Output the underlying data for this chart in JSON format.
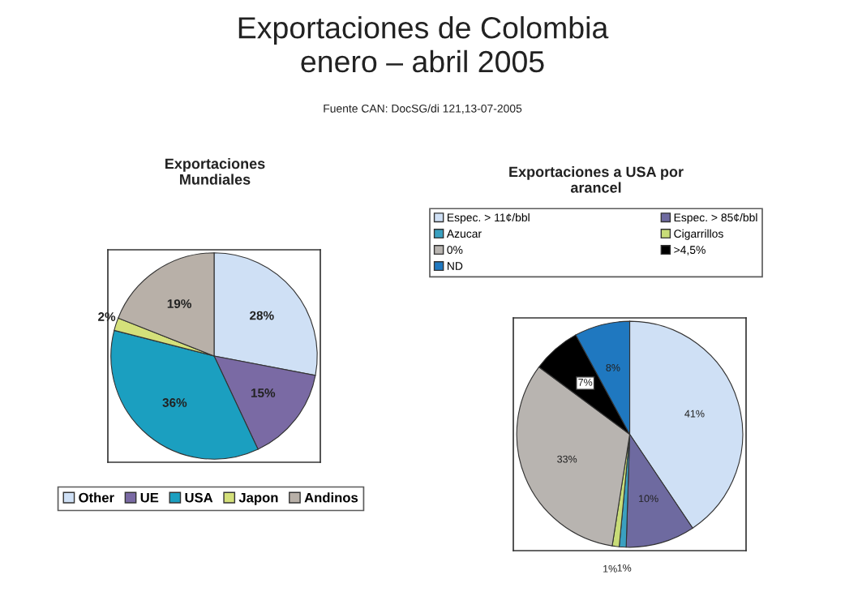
{
  "chart_data": [
    {
      "type": "other",
      "title": "Exportaciones de Colombia\nenero – abril 2005",
      "annotations": [
        "Fuente CAN: DocSG/di 121,13-07-2005"
      ]
    },
    {
      "type": "pie",
      "title": "Exportaciones\nMundiales",
      "categories": [
        "Other",
        "UE",
        "USA",
        "Japon",
        "Andinos"
      ],
      "values": [
        28,
        15,
        36,
        2,
        19
      ],
      "colors": [
        "#cfe0f5",
        "#7a6aa4",
        "#1b9fc0",
        "#d4e07a",
        "#b8b0a8"
      ],
      "value_labels": [
        "28%",
        "15%",
        "36%",
        "2%",
        "19%"
      ],
      "legend": "bottom"
    },
    {
      "type": "pie",
      "title": "Exportaciones a USA por\narancel",
      "categories": [
        "Espec. > 11¢/bbl",
        "Espec. > 85¢/bbl",
        "Azucar",
        "Cigarrillos",
        "0%",
        ">4,5%",
        "ND"
      ],
      "values": [
        41,
        10,
        1,
        1,
        33,
        7,
        8
      ],
      "colors": [
        "#cfe0f5",
        "#6e6aa0",
        "#3aa0c0",
        "#c8dc78",
        "#b8b4b0",
        "#000000",
        "#1f78c0"
      ],
      "value_labels": [
        "41%",
        "10%",
        "1%",
        "1%",
        "33%",
        "7%",
        "8%"
      ],
      "legend": "top"
    }
  ]
}
